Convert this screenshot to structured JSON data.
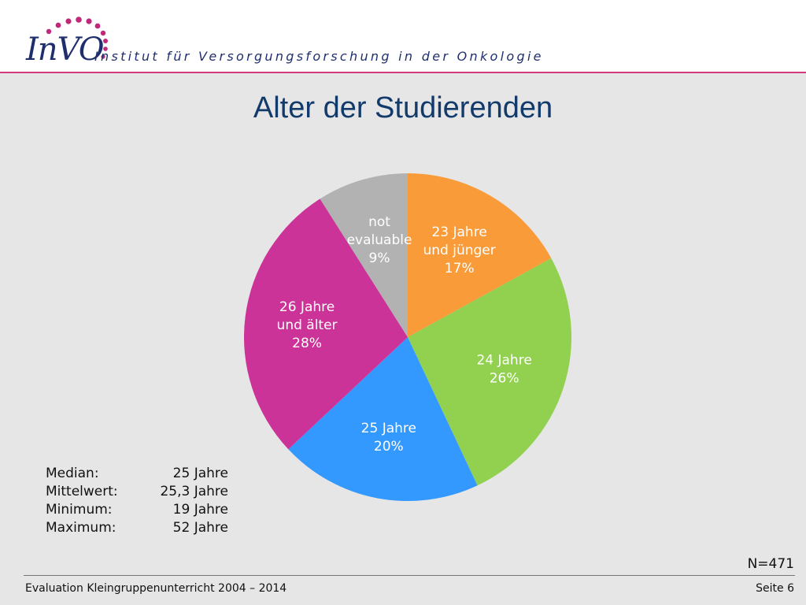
{
  "header": {
    "logo_text": "InVO",
    "institute": "Institut für Versorgungsforschung in der Onkologie",
    "logo_dot_color": "#c0287a",
    "rule_color": "#d13a7f"
  },
  "title": "Alter der Studierenden",
  "chart_data": {
    "type": "pie",
    "title": "Alter der Studierenden",
    "start": "12 o'clock, clockwise",
    "slices": [
      {
        "label_lines": [
          "23 Jahre",
          "und jünger",
          "17%"
        ],
        "category": "23 Jahre und jünger",
        "value": 17,
        "color": "#f99b38"
      },
      {
        "label_lines": [
          "24 Jahre",
          "26%"
        ],
        "category": "24 Jahre",
        "value": 26,
        "color": "#92d050"
      },
      {
        "label_lines": [
          "25 Jahre",
          "20%"
        ],
        "category": "25 Jahre",
        "value": 20,
        "color": "#3399ff"
      },
      {
        "label_lines": [
          "26 Jahre",
          "und älter",
          "28%"
        ],
        "category": "26 Jahre und älter",
        "value": 28,
        "color": "#cc3399"
      },
      {
        "label_lines": [
          "not",
          "evaluable",
          "9%"
        ],
        "category": "not evaluable",
        "value": 9,
        "color": "#b2b2b2"
      }
    ]
  },
  "stats": [
    {
      "label": "Median:",
      "value": "25 Jahre"
    },
    {
      "label": "Mittelwert:",
      "value": "25,3 Jahre"
    },
    {
      "label": "Minimum:",
      "value": "19 Jahre"
    },
    {
      "label": "Maximum:",
      "value": "52 Jahre"
    }
  ],
  "n": "N=471",
  "footer": {
    "left": "Evaluation Kleingruppenunterricht 2004 – 2014",
    "right": "Seite 6"
  }
}
